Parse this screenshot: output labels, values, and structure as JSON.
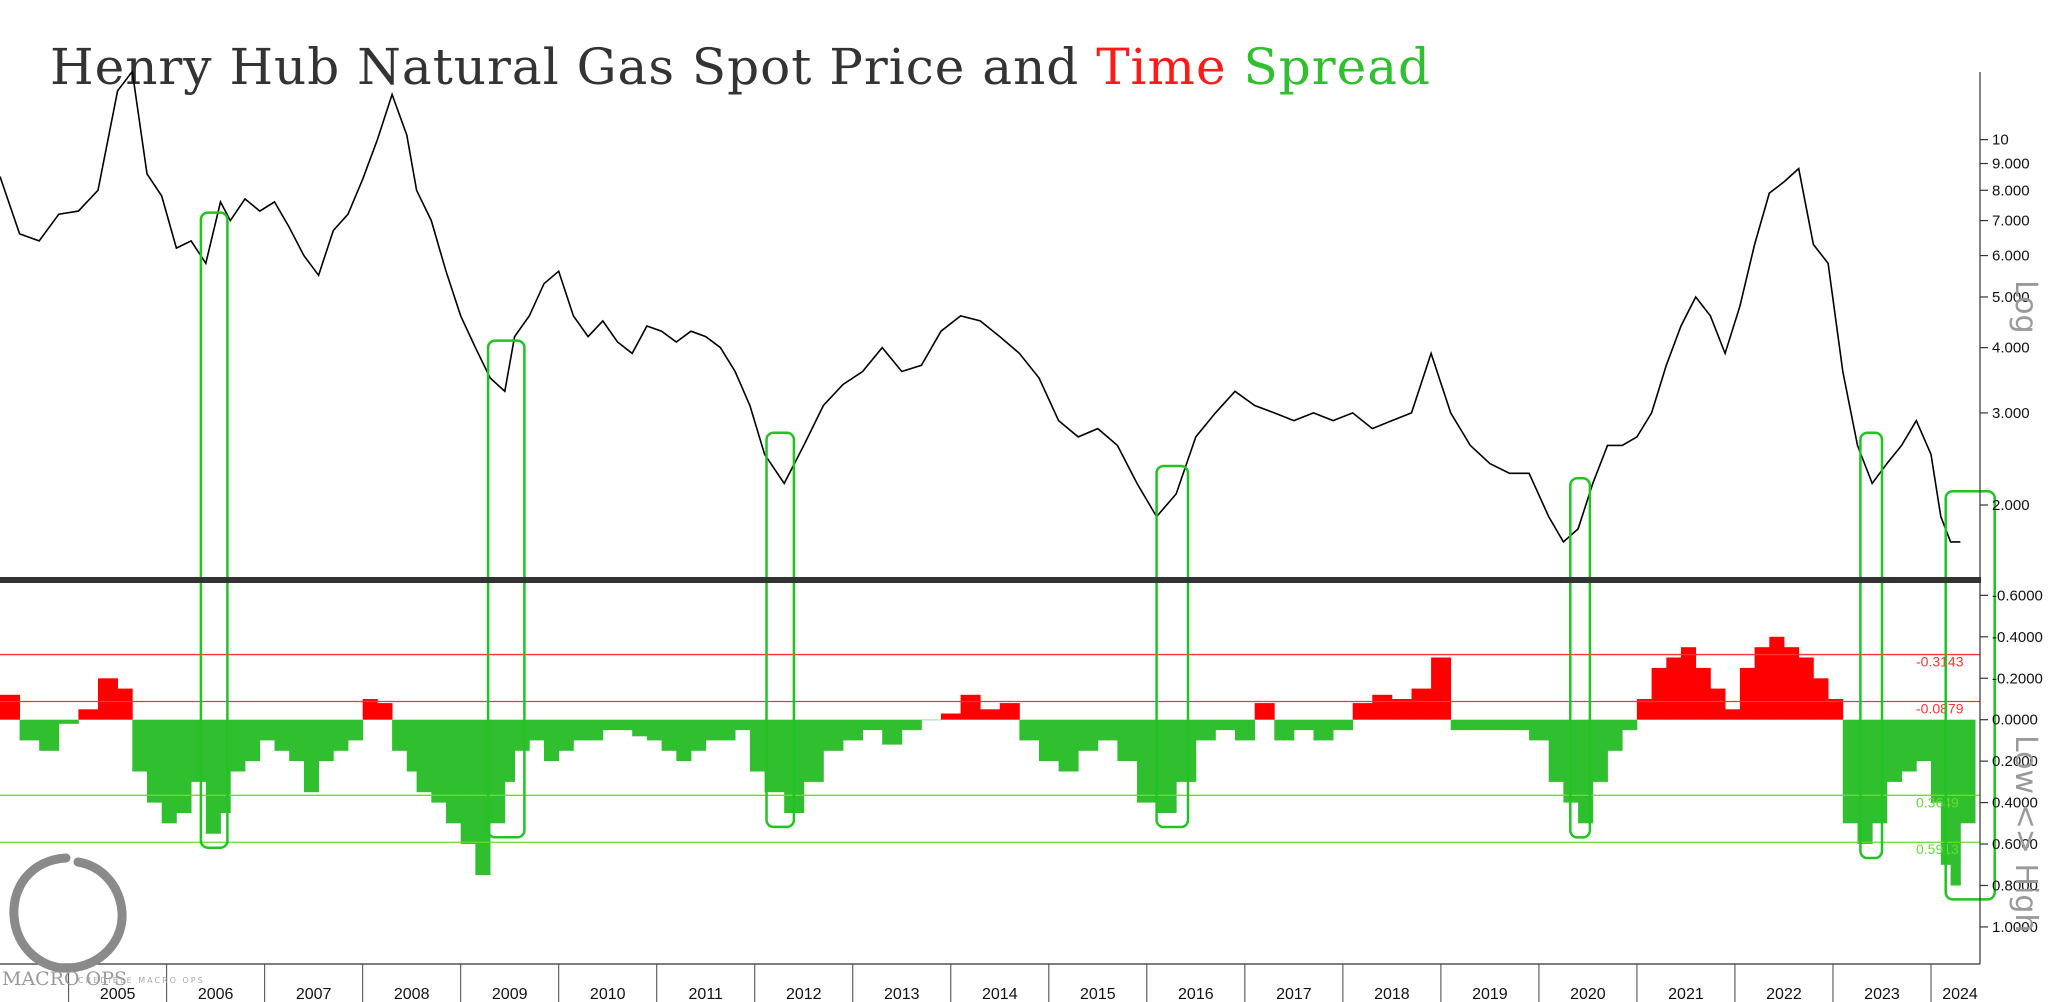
{
  "title": {
    "part1": "Henry Hub Natural Gas Spot Price and ",
    "part2": "Time",
    "part3": " ",
    "part4": "Spread"
  },
  "colors": {
    "price_line": "#000000",
    "contango_fill": "#ff0000",
    "backwardation_fill": "#2fbf2f",
    "highlight_box": "#22c422",
    "red_level": "#ff3333",
    "green_level": "#66dd33",
    "divider": "#333333"
  },
  "right_captions": {
    "top": "Log",
    "bottom": "Low <> High"
  },
  "logo": {
    "text": "MACRO OPS",
    "sub": "CREDIBLE MACRO OPS"
  },
  "chart_data": [
    {
      "type": "line",
      "scale": "log",
      "x_range": [
        2004.3,
        2024.5
      ],
      "ylim": [
        1.45,
        14.2
      ],
      "y_ticks": [
        {
          "value": 10,
          "label": "10"
        },
        {
          "value": 9,
          "label": "9.000"
        },
        {
          "value": 8,
          "label": "8.000"
        },
        {
          "value": 7,
          "label": "7.000"
        },
        {
          "value": 6,
          "label": "6.000"
        },
        {
          "value": 5,
          "label": "5.000"
        },
        {
          "value": 4,
          "label": "4.000"
        },
        {
          "value": 3,
          "label": "3.000"
        },
        {
          "value": 2,
          "label": "2.000"
        }
      ],
      "x": [
        2004.3,
        2004.5,
        2004.7,
        2004.9,
        2005.1,
        2005.3,
        2005.5,
        2005.65,
        2005.8,
        2005.95,
        2006.1,
        2006.25,
        2006.4,
        2006.55,
        2006.65,
        2006.8,
        2006.95,
        2007.1,
        2007.25,
        2007.4,
        2007.55,
        2007.7,
        2007.85,
        2008.0,
        2008.15,
        2008.3,
        2008.45,
        2008.55,
        2008.7,
        2008.85,
        2009.0,
        2009.15,
        2009.3,
        2009.45,
        2009.55,
        2009.7,
        2009.85,
        2010.0,
        2010.15,
        2010.3,
        2010.45,
        2010.6,
        2010.75,
        2010.9,
        2011.05,
        2011.2,
        2011.35,
        2011.5,
        2011.65,
        2011.8,
        2011.95,
        2012.1,
        2012.3,
        2012.5,
        2012.7,
        2012.9,
        2013.1,
        2013.3,
        2013.5,
        2013.7,
        2013.9,
        2014.1,
        2014.3,
        2014.5,
        2014.7,
        2014.9,
        2015.1,
        2015.3,
        2015.5,
        2015.7,
        2015.9,
        2016.1,
        2016.3,
        2016.5,
        2016.7,
        2016.9,
        2017.1,
        2017.3,
        2017.5,
        2017.7,
        2017.9,
        2018.1,
        2018.3,
        2018.5,
        2018.7,
        2018.9,
        2019.1,
        2019.3,
        2019.5,
        2019.7,
        2019.9,
        2020.1,
        2020.25,
        2020.4,
        2020.55,
        2020.7,
        2020.85,
        2021.0,
        2021.15,
        2021.3,
        2021.45,
        2021.6,
        2021.75,
        2021.9,
        2022.05,
        2022.2,
        2022.35,
        2022.5,
        2022.65,
        2022.8,
        2022.95,
        2023.1,
        2023.25,
        2023.4,
        2023.55,
        2023.7,
        2023.85,
        2024.0,
        2024.1,
        2024.2,
        2024.3
      ],
      "values": [
        8.5,
        6.6,
        6.4,
        7.2,
        7.3,
        8.0,
        12.4,
        13.5,
        8.6,
        7.8,
        6.2,
        6.4,
        5.8,
        7.6,
        7.0,
        7.7,
        7.3,
        7.6,
        6.8,
        6.0,
        5.5,
        6.7,
        7.2,
        8.4,
        10.0,
        12.2,
        10.2,
        8.0,
        7.0,
        5.6,
        4.6,
        4.0,
        3.5,
        3.3,
        4.2,
        4.6,
        5.3,
        5.6,
        4.6,
        4.2,
        4.5,
        4.1,
        3.9,
        4.4,
        4.3,
        4.1,
        4.3,
        4.2,
        4.0,
        3.6,
        3.1,
        2.5,
        2.2,
        2.6,
        3.1,
        3.4,
        3.6,
        4.0,
        3.6,
        3.7,
        4.3,
        4.6,
        4.5,
        4.2,
        3.9,
        3.5,
        2.9,
        2.7,
        2.8,
        2.6,
        2.2,
        1.9,
        2.1,
        2.7,
        3.0,
        3.3,
        3.1,
        3.0,
        2.9,
        3.0,
        2.9,
        3.0,
        2.8,
        2.9,
        3.0,
        3.9,
        3.0,
        2.6,
        2.4,
        2.3,
        2.3,
        1.9,
        1.7,
        1.8,
        2.2,
        2.6,
        2.6,
        2.7,
        3.0,
        3.7,
        4.4,
        5.0,
        4.6,
        3.9,
        4.8,
        6.3,
        7.9,
        8.3,
        8.8,
        6.3,
        5.8,
        3.6,
        2.6,
        2.2,
        2.4,
        2.6,
        2.9,
        2.5,
        1.9,
        1.7,
        1.7
      ]
    },
    {
      "type": "area",
      "x_range": [
        2004.3,
        2024.5
      ],
      "ylim": [
        -0.65,
        1.15
      ],
      "y_ticks": [
        {
          "value": -0.6,
          "label": "-0.6000"
        },
        {
          "value": -0.4,
          "label": "-0.4000"
        },
        {
          "value": -0.2,
          "label": "-0.2000"
        },
        {
          "value": 0.0,
          "label": "0.0000"
        },
        {
          "value": 0.2,
          "label": "0.2000"
        },
        {
          "value": 0.4,
          "label": "0.4000"
        },
        {
          "value": 0.6,
          "label": "0.6000"
        },
        {
          "value": 0.8,
          "label": "0.8000"
        },
        {
          "value": 1.0,
          "label": "1.0000"
        }
      ],
      "levels": [
        {
          "value": -0.3143,
          "label": "-0.3143",
          "color": "red"
        },
        {
          "value": -0.0879,
          "label": "-0.0879",
          "color": "red"
        },
        {
          "value": 0.3649,
          "label": "0.3649",
          "color": "green"
        },
        {
          "value": 0.5913,
          "label": "0.5913",
          "color": "green"
        }
      ],
      "x": [
        2004.3,
        2004.5,
        2004.7,
        2004.9,
        2005.1,
        2005.3,
        2005.5,
        2005.65,
        2005.8,
        2005.95,
        2006.1,
        2006.25,
        2006.4,
        2006.55,
        2006.65,
        2006.8,
        2006.95,
        2007.1,
        2007.25,
        2007.4,
        2007.55,
        2007.7,
        2007.85,
        2008.0,
        2008.15,
        2008.3,
        2008.45,
        2008.55,
        2008.7,
        2008.85,
        2009.0,
        2009.15,
        2009.3,
        2009.45,
        2009.55,
        2009.7,
        2009.85,
        2010.0,
        2010.15,
        2010.3,
        2010.45,
        2010.6,
        2010.75,
        2010.9,
        2011.05,
        2011.2,
        2011.35,
        2011.5,
        2011.65,
        2011.8,
        2011.95,
        2012.1,
        2012.3,
        2012.5,
        2012.7,
        2012.9,
        2013.1,
        2013.3,
        2013.5,
        2013.7,
        2013.9,
        2014.1,
        2014.3,
        2014.5,
        2014.7,
        2014.9,
        2015.1,
        2015.3,
        2015.5,
        2015.7,
        2015.9,
        2016.1,
        2016.3,
        2016.5,
        2016.7,
        2016.9,
        2017.1,
        2017.3,
        2017.5,
        2017.7,
        2017.9,
        2018.1,
        2018.3,
        2018.5,
        2018.7,
        2018.9,
        2019.1,
        2019.3,
        2019.5,
        2019.7,
        2019.9,
        2020.1,
        2020.25,
        2020.4,
        2020.55,
        2020.7,
        2020.85,
        2021.0,
        2021.15,
        2021.3,
        2021.45,
        2021.6,
        2021.75,
        2021.9,
        2022.05,
        2022.2,
        2022.35,
        2022.5,
        2022.65,
        2022.8,
        2022.95,
        2023.1,
        2023.25,
        2023.4,
        2023.55,
        2023.7,
        2023.85,
        2024.0,
        2024.1,
        2024.2,
        2024.3
      ],
      "values": [
        -0.12,
        0.1,
        0.15,
        0.02,
        -0.05,
        -0.2,
        -0.15,
        0.25,
        0.4,
        0.5,
        0.45,
        0.3,
        0.55,
        0.45,
        0.25,
        0.2,
        0.1,
        0.15,
        0.2,
        0.35,
        0.2,
        0.15,
        0.1,
        -0.1,
        -0.08,
        0.15,
        0.25,
        0.35,
        0.4,
        0.5,
        0.6,
        0.75,
        0.5,
        0.3,
        0.15,
        0.1,
        0.2,
        0.15,
        0.1,
        0.1,
        0.05,
        0.05,
        0.08,
        0.1,
        0.15,
        0.2,
        0.15,
        0.1,
        0.1,
        0.05,
        0.25,
        0.35,
        0.45,
        0.3,
        0.15,
        0.1,
        0.05,
        0.12,
        0.05,
        0.0,
        -0.03,
        -0.12,
        -0.05,
        -0.08,
        0.1,
        0.2,
        0.25,
        0.15,
        0.1,
        0.2,
        0.4,
        0.45,
        0.3,
        0.1,
        0.05,
        0.1,
        -0.08,
        0.1,
        0.05,
        0.1,
        0.05,
        -0.08,
        -0.12,
        -0.1,
        -0.15,
        -0.3,
        0.05,
        0.05,
        0.05,
        0.05,
        0.1,
        0.3,
        0.4,
        0.5,
        0.3,
        0.15,
        0.05,
        -0.1,
        -0.25,
        -0.3,
        -0.35,
        -0.25,
        -0.15,
        -0.05,
        -0.25,
        -0.35,
        -0.4,
        -0.35,
        -0.3,
        -0.2,
        -0.1,
        0.5,
        0.6,
        0.5,
        0.3,
        0.25,
        0.2,
        0.4,
        0.7,
        0.8,
        0.5
      ]
    }
  ],
  "x_axis": {
    "years": [
      "2005",
      "2006",
      "2007",
      "2008",
      "2009",
      "2010",
      "2011",
      "2012",
      "2013",
      "2014",
      "2015",
      "2016",
      "2017",
      "2018",
      "2019",
      "2020",
      "2021",
      "2022",
      "2023",
      "2024"
    ]
  },
  "highlight_boxes": [
    {
      "from": 2006.35,
      "to": 2006.62
    },
    {
      "from": 2009.28,
      "to": 2009.65
    },
    {
      "from": 2012.12,
      "to": 2012.4
    },
    {
      "from": 2016.1,
      "to": 2016.42
    },
    {
      "from": 2020.32,
      "to": 2020.52
    },
    {
      "from": 2023.28,
      "to": 2023.5
    },
    {
      "from": 2024.15,
      "to": 2024.65
    }
  ]
}
